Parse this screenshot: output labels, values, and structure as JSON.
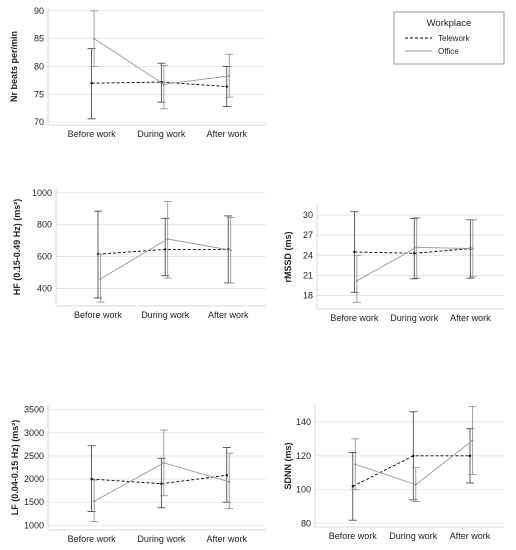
{
  "legend": {
    "title": "Workplace",
    "items": [
      {
        "name": "Telework",
        "style": "dashed",
        "color": "#000000"
      },
      {
        "name": "Office",
        "style": "solid",
        "color": "#9a9a9a"
      }
    ]
  },
  "chart_data": [
    {
      "id": "hr",
      "type": "line",
      "ylabel": "Nr beats per/min",
      "categories": [
        "Before work",
        "During work",
        "After work"
      ],
      "ylim": [
        69.5,
        90.5
      ],
      "yticks": [
        70,
        75,
        80,
        85,
        90
      ],
      "series": [
        {
          "name": "Telework",
          "values": [
            77.0,
            77.2,
            76.4
          ],
          "err_low": [
            70.6,
            73.6,
            72.8
          ],
          "err_high": [
            83.2,
            80.6,
            80.0
          ]
        },
        {
          "name": "Office",
          "values": [
            85.0,
            76.8,
            78.3
          ],
          "err_low": [
            80.0,
            72.4,
            74.5
          ],
          "err_high": [
            90.0,
            80.2,
            82.2
          ]
        }
      ]
    },
    {
      "id": "hf",
      "type": "line",
      "ylabel": "HF (0.15-0.49 Hz) (ms²)",
      "categories": [
        "Before work",
        "During work",
        "After work"
      ],
      "ylim": [
        290,
        1030
      ],
      "yticks": [
        400,
        600,
        800,
        1000
      ],
      "series": [
        {
          "name": "Telework",
          "values": [
            615,
            645,
            645
          ],
          "err_low": [
            340,
            480,
            435
          ],
          "err_high": [
            885,
            840,
            855
          ]
        },
        {
          "name": "Office",
          "values": [
            460,
            710,
            640
          ],
          "err_low": [
            315,
            465,
            435
          ],
          "err_high": [
            615,
            945,
            845
          ]
        }
      ]
    },
    {
      "id": "rmssd",
      "type": "line",
      "ylabel": "rMSSD (ms)",
      "categories": [
        "Before work",
        "During work",
        "After work"
      ],
      "ylim": [
        16.0,
        31.5
      ],
      "yticks": [
        18,
        21,
        24,
        27,
        30
      ],
      "series": [
        {
          "name": "Telework",
          "values": [
            24.5,
            24.3,
            25.0
          ],
          "err_low": [
            18.5,
            20.5,
            20.6
          ],
          "err_high": [
            30.5,
            29.5,
            29.3
          ]
        },
        {
          "name": "Office",
          "values": [
            20.2,
            25.2,
            25.0
          ],
          "err_low": [
            17.0,
            20.6,
            20.8
          ],
          "err_high": [
            24.0,
            29.6,
            29.3
          ]
        }
      ]
    },
    {
      "id": "lf",
      "type": "line",
      "ylabel": "LF (0.04-0.15 Hz) (ms²)",
      "categories": [
        "Before work",
        "During work",
        "After work"
      ],
      "ylim": [
        900,
        3600
      ],
      "yticks": [
        1000,
        1500,
        2000,
        2500,
        3000,
        3500
      ],
      "series": [
        {
          "name": "Telework",
          "values": [
            2000,
            1900,
            2080
          ],
          "err_low": [
            1300,
            1380,
            1500
          ],
          "err_high": [
            2720,
            2450,
            2680
          ]
        },
        {
          "name": "Office",
          "values": [
            1520,
            2350,
            1940
          ],
          "err_low": [
            1080,
            1640,
            1360
          ],
          "err_high": [
            1980,
            3060,
            2560
          ]
        }
      ]
    },
    {
      "id": "sdnn",
      "type": "line",
      "ylabel": "SDNN (ms)",
      "categories": [
        "Before work",
        "During work",
        "After work"
      ],
      "ylim": [
        78,
        150
      ],
      "yticks": [
        80,
        100,
        120,
        140
      ],
      "series": [
        {
          "name": "Telework",
          "values": [
            102,
            120,
            120
          ],
          "err_low": [
            82,
            94,
            104
          ],
          "err_high": [
            122,
            146,
            136
          ]
        },
        {
          "name": "Office",
          "values": [
            115,
            103,
            129
          ],
          "err_low": [
            100,
            93,
            109
          ],
          "err_high": [
            130,
            113,
            149
          ]
        }
      ]
    }
  ]
}
